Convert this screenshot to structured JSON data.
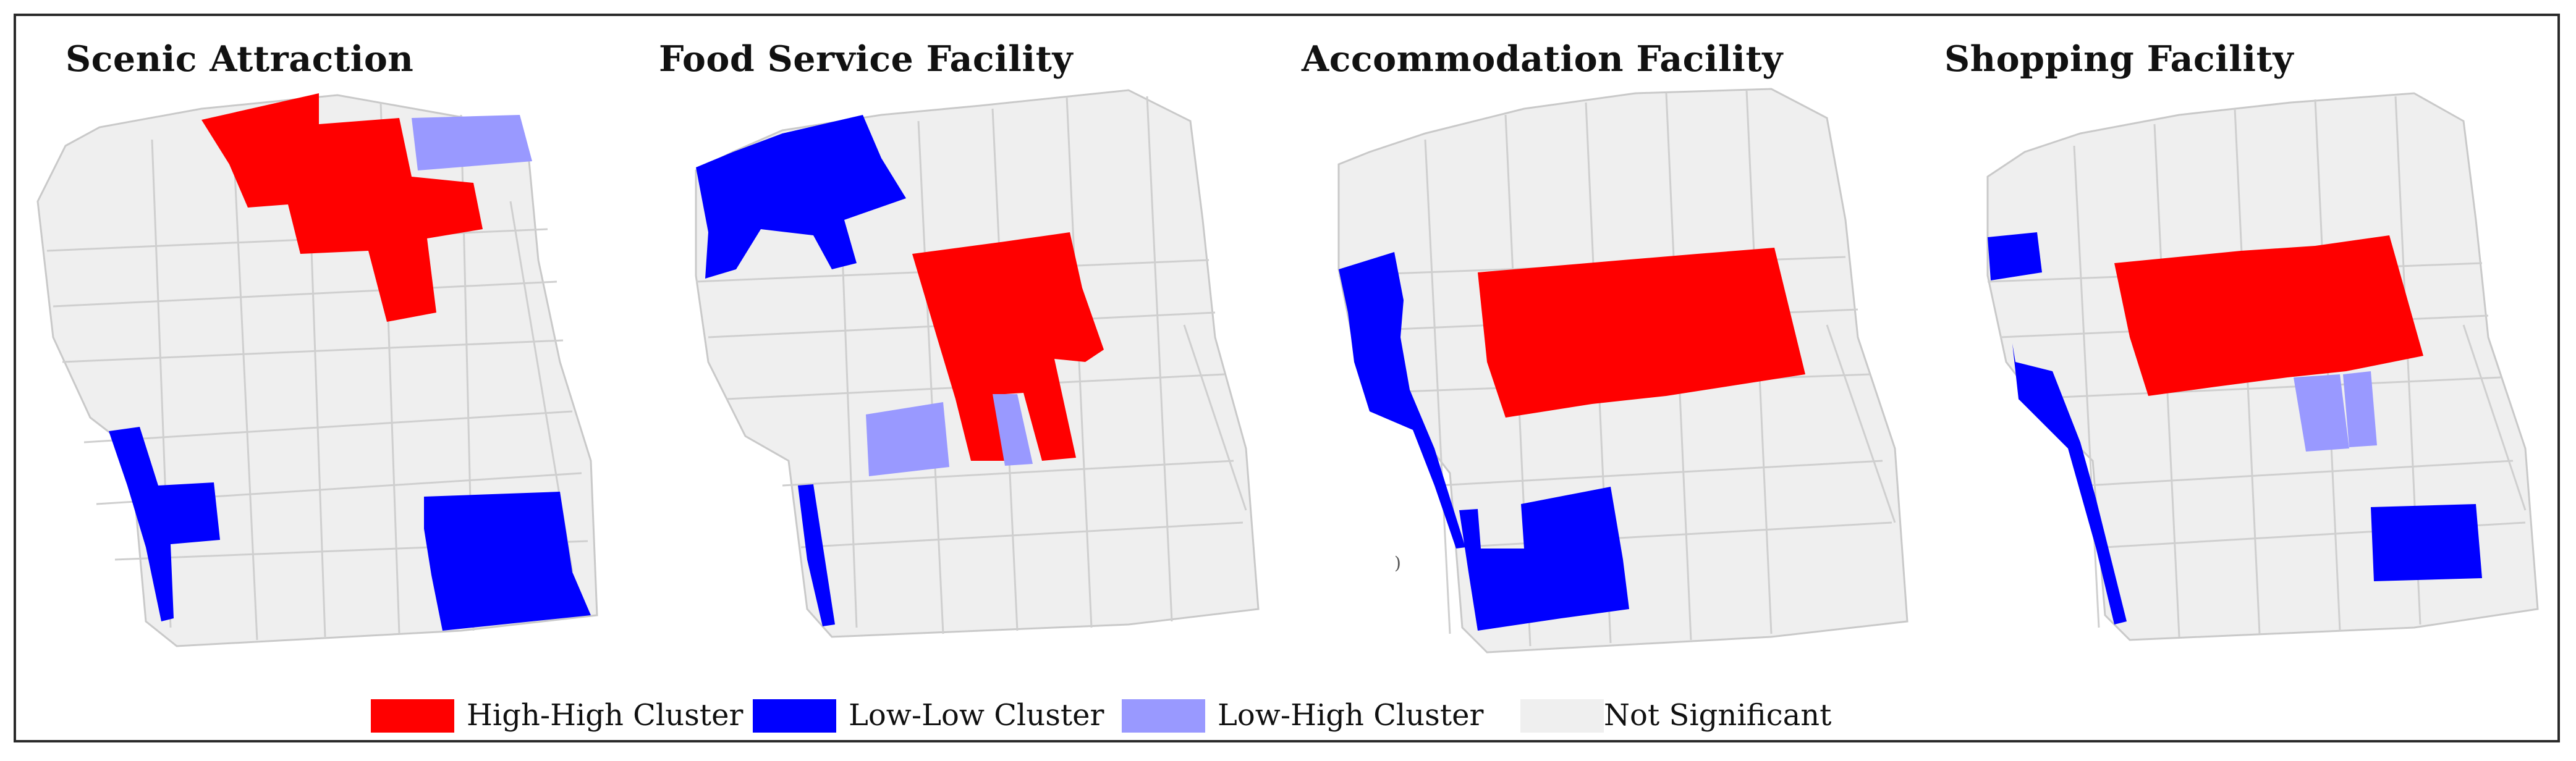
{
  "colors": {
    "high_high": "#ff0000",
    "low_low": "#0000ff",
    "low_high": "#9999ff",
    "not_significant": "#efefef",
    "boundary": "#c9c9c9"
  },
  "panels": [
    {
      "title": "Scenic Attraction"
    },
    {
      "title": "Food Service Facility"
    },
    {
      "title": "Accommodation Facility"
    },
    {
      "title": "Shopping Facility"
    }
  ],
  "legend": [
    {
      "label": "High-High Cluster",
      "color": "#ff0000"
    },
    {
      "label": "Low-Low Cluster",
      "color": "#0000ff"
    },
    {
      "label": "Low-High Cluster",
      "color": "#9999ff"
    },
    {
      "label": "Not Significant",
      "color": "#efefef"
    }
  ]
}
